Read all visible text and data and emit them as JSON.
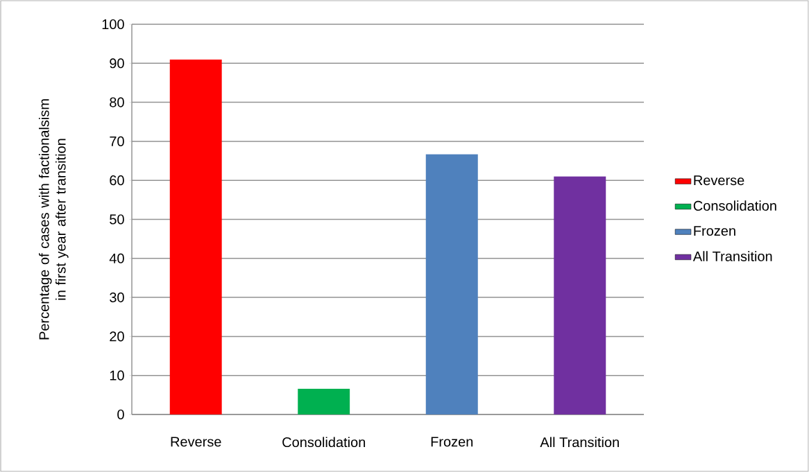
{
  "chart_data": {
    "type": "bar",
    "ylabel": "Percentage of cases with factionalsism in first year after transition",
    "categories": [
      "Reverse",
      "Consolidation",
      "Frozen",
      "All Transition"
    ],
    "series": [
      {
        "name": "Reverse",
        "color": "#ff0000",
        "values": [
          91,
          null,
          null,
          null
        ]
      },
      {
        "name": "Consolidation",
        "color": "#00b050",
        "values": [
          null,
          6.6,
          null,
          null
        ]
      },
      {
        "name": "Frozen",
        "color": "#4f81bd",
        "values": [
          null,
          null,
          66.7,
          null
        ]
      },
      {
        "name": "All Transition",
        "color": "#7030a0",
        "values": [
          null,
          null,
          null,
          61
        ]
      }
    ],
    "ylim": [
      0,
      100
    ],
    "yticks": [
      0,
      10,
      20,
      30,
      40,
      50,
      60,
      70,
      80,
      90,
      100
    ],
    "grid": "y",
    "legend": "right"
  }
}
